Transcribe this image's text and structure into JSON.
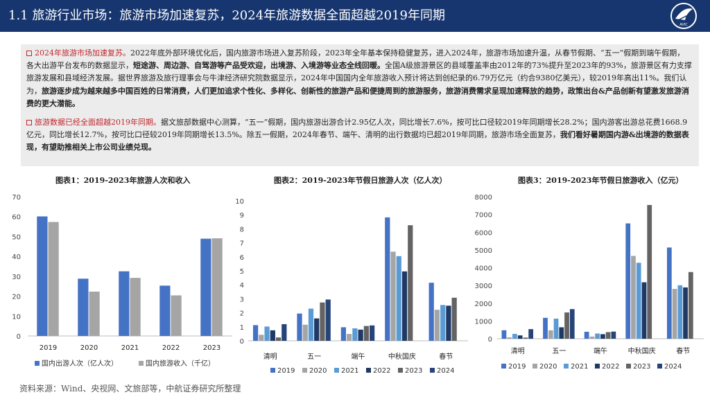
{
  "header": {
    "title": "1.1 旅游行业市场：旅游市场加速复苏，2024年旅游数据全面超越2019年同期"
  },
  "logo": {
    "caption": "AVIC"
  },
  "summary": {
    "p1": {
      "lead": "2024年旅游市场加速复苏。",
      "text1": "2022年底外部环境优化后，国内旅游市场进入复苏阶段，2023年全年基本保持稳健复苏，进入2024年，旅游市场加速升温，从春节假期、“五一”假期到端午假期，各大出游平台发布的数据显示，",
      "bold1": "短途游、周边游、自驾游等产品受欢迎，出境游、入境游等业态全线回暖。",
      "text2": "全国A级旅游景区的县域覆盖率由2012年的73%提升至2023年的93%，旅游景区有力支撑旅游发展和县域经济发展。据世界旅游及旅行理事会与牛津经济研究院数据显示，2024年中国国内全年旅游收入预计将达到创纪录的6.79万亿元（约合9380亿美元），较2019年高出11%。我们认为，",
      "bold2": "旅游逐步成为越来越多中国百姓的日常消费，人们更加追求个性化、多样化、创新性的旅游产品和便捷周到的旅游服务，旅游消费需求呈现加速释放的趋势，政策出台&产品创新有望激发旅游消费的更大潜能。"
    },
    "p2": {
      "lead": "旅游数据已经全面超越2019年同期。",
      "text1": "据文旅部数据中心测算，“五一”假期，国内旅游出游合计2.95亿人次，同比增长7.6%，按可比口径较2019年同期增长28.2%；国内游客出游总花费1668.9亿元，同比增长12.7%，按可比口径较2019年同期增长13.5%。除五一假期，2024年春节、端午、清明的出行数据均已超2019年同期，旅游市场全面复苏，",
      "bold1": "我们看好暑期国内游&出境游的数据表现，有望助推相关上市公司业绩兑现。"
    }
  },
  "charts": [
    {
      "title": "图表1：2019-2023年旅游人次和收入",
      "chart_data": {
        "type": "bar",
        "categories": [
          "2019",
          "2020",
          "2021",
          "2022",
          "2023"
        ],
        "series": [
          {
            "name": "国内出游人次（亿人次）",
            "color": "#4472c4",
            "values": [
              60.1,
              28.8,
              32.5,
              25.3,
              48.9
            ]
          },
          {
            "name": "国内旅游收入（千亿）",
            "color": "#a5a5a5",
            "values": [
              57.3,
              22.3,
              29.2,
              20.4,
              49.1
            ]
          }
        ],
        "ylim": [
          0,
          70
        ],
        "yticks": [
          0,
          10,
          20,
          30,
          40,
          50,
          60,
          70
        ],
        "grid": false,
        "legend": "bottom"
      }
    },
    {
      "title": "图表2：2019-2023年节假日旅游人次（亿人次）",
      "chart_data": {
        "type": "bar",
        "categories": [
          "清明",
          "五一",
          "端午",
          "中秋国庆",
          "春节"
        ],
        "series": [
          {
            "name": "2019",
            "color": "#4472c4",
            "values": [
              1.12,
              1.95,
              0.97,
              8.82,
              4.15
            ]
          },
          {
            "name": "2020",
            "color": "#a5a5a5",
            "values": [
              0.43,
              1.15,
              0.49,
              6.37,
              2.22
            ]
          },
          {
            "name": "2021",
            "color": "#5b9bd5",
            "values": [
              1.02,
              2.3,
              0.89,
              6.05,
              2.56
            ]
          },
          {
            "name": "2022",
            "color": "#1f3864",
            "values": [
              0.75,
              1.6,
              0.8,
              4.96,
              2.51
            ]
          },
          {
            "name": "2023",
            "color": "#636363",
            "values": [
              0.24,
              2.74,
              1.06,
              8.26,
              3.08
            ]
          },
          {
            "name": "2024",
            "color": "#264478",
            "values": [
              1.19,
              2.95,
              1.1,
              null,
              null
            ]
          }
        ],
        "ylim": [
          0,
          10
        ],
        "yticks": [
          0,
          1,
          2,
          3,
          4,
          5,
          6,
          7,
          8,
          9,
          10
        ],
        "grid": false,
        "legend": "bottom"
      }
    },
    {
      "title": "图表3：2019-2023年节假日旅游收入（亿元）",
      "chart_data": {
        "type": "bar",
        "categories": [
          "清明",
          "五一",
          "端午",
          "中秋国庆",
          "春节"
        ],
        "series": [
          {
            "name": "2019",
            "color": "#4472c4",
            "values": [
              478,
              1177,
              393,
              6497,
              5139
            ]
          },
          {
            "name": "2020",
            "color": "#a5a5a5",
            "values": [
              80,
              475,
              123,
              4666,
              2806
            ]
          },
          {
            "name": "2021",
            "color": "#5b9bd5",
            "values": [
              272,
              1132,
              294,
              4279,
              3011
            ]
          },
          {
            "name": "2022",
            "color": "#1f3864",
            "values": [
              188,
              646,
              258,
              3180,
              2891
            ]
          },
          {
            "name": "2023",
            "color": "#636363",
            "values": [
              65,
              1481,
              373,
              7534,
              3758
            ]
          },
          {
            "name": "2024",
            "color": "#264478",
            "values": [
              540,
              1669,
              403,
              null,
              null
            ]
          }
        ],
        "ylim": [
          0,
          8000
        ],
        "yticks": [
          0,
          1000,
          2000,
          3000,
          4000,
          5000,
          6000,
          7000,
          8000
        ],
        "grid": false,
        "legend": "bottom"
      }
    }
  ],
  "source": "资料来源：Wind、央视网、文旅部等，中航证券研究所整理"
}
